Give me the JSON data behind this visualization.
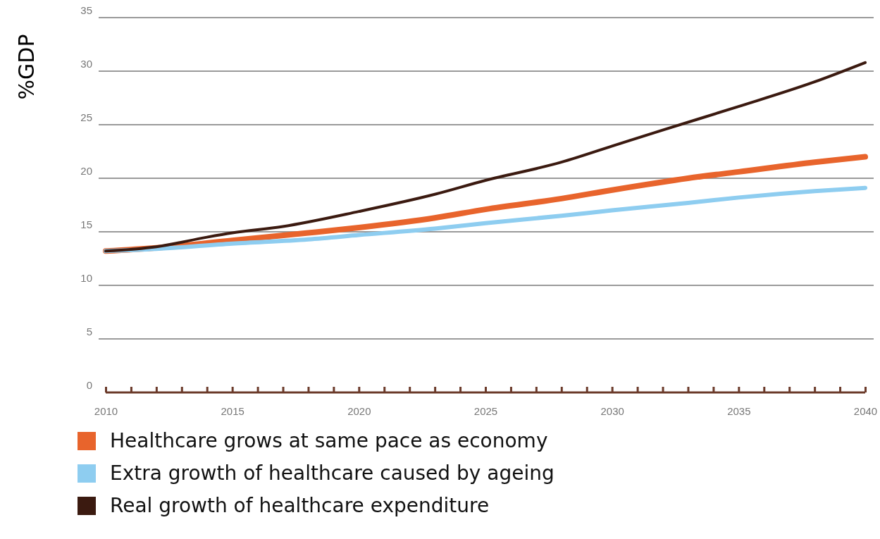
{
  "chart_data": {
    "type": "line",
    "ylabel": "%GDP",
    "xlim": [
      2010,
      2040
    ],
    "xticks": [
      2010,
      {
        "value": 2011,
        "label": null
      },
      {
        "value": 2012,
        "label": null
      },
      {
        "value": 2013,
        "label": null
      },
      {
        "value": 2014,
        "label": null
      },
      2015,
      {
        "value": 2016,
        "label": null
      },
      {
        "value": 2017,
        "label": null
      },
      {
        "value": 2018,
        "label": null
      },
      {
        "value": 2019,
        "label": null
      },
      2020,
      {
        "value": 2021,
        "label": null
      },
      {
        "value": 2022,
        "label": null
      },
      {
        "value": 2023,
        "label": null
      },
      {
        "value": 2024,
        "label": null
      },
      2025,
      {
        "value": 2026,
        "label": null
      },
      {
        "value": 2027,
        "label": null
      },
      {
        "value": 2028,
        "label": null
      },
      {
        "value": 2029,
        "label": null
      },
      2030,
      {
        "value": 2031,
        "label": null
      },
      {
        "value": 2032,
        "label": null
      },
      {
        "value": 2033,
        "label": null
      },
      {
        "value": 2034,
        "label": null
      },
      2035,
      {
        "value": 2036,
        "label": null
      },
      {
        "value": 2037,
        "label": null
      },
      {
        "value": 2038,
        "label": null
      },
      {
        "value": 2039,
        "label": null
      },
      2040
    ],
    "ylim": [
      0,
      35
    ],
    "yticks": [
      0,
      5,
      10,
      15,
      20,
      25,
      30,
      35
    ],
    "grid": "y",
    "legend": "bottom",
    "marker": "none",
    "line_style": "solid",
    "series": [
      {
        "name": "Healthcare grows at same pace as economy",
        "color": "#e8642c",
        "x": [
          2010,
          2012,
          2015,
          2018,
          2020,
          2023,
          2025,
          2028,
          2030,
          2033,
          2035,
          2038,
          2040
        ],
        "values": [
          13.2,
          13.5,
          14.2,
          14.9,
          15.4,
          16.3,
          17.1,
          18.1,
          18.9,
          20.0,
          20.6,
          21.5,
          22.0
        ]
      },
      {
        "name": "Extra growth of healthcare caused by ageing",
        "color": "#8ecdf0",
        "x": [
          2010,
          2012,
          2015,
          2018,
          2020,
          2023,
          2025,
          2028,
          2030,
          2033,
          2035,
          2038,
          2040
        ],
        "values": [
          13.2,
          13.4,
          13.9,
          14.3,
          14.7,
          15.3,
          15.8,
          16.5,
          17.0,
          17.7,
          18.2,
          18.8,
          19.1
        ]
      },
      {
        "name": "Real growth of healthcare expenditure",
        "color": "#3b1a10",
        "x": [
          2010,
          2012,
          2014,
          2015,
          2017,
          2020,
          2023,
          2025,
          2028,
          2030,
          2032,
          2035,
          2038,
          2040
        ],
        "values": [
          13.2,
          13.6,
          14.5,
          14.9,
          15.5,
          16.9,
          18.5,
          19.8,
          21.5,
          23.0,
          24.5,
          26.7,
          29.0,
          30.8
        ]
      }
    ]
  }
}
